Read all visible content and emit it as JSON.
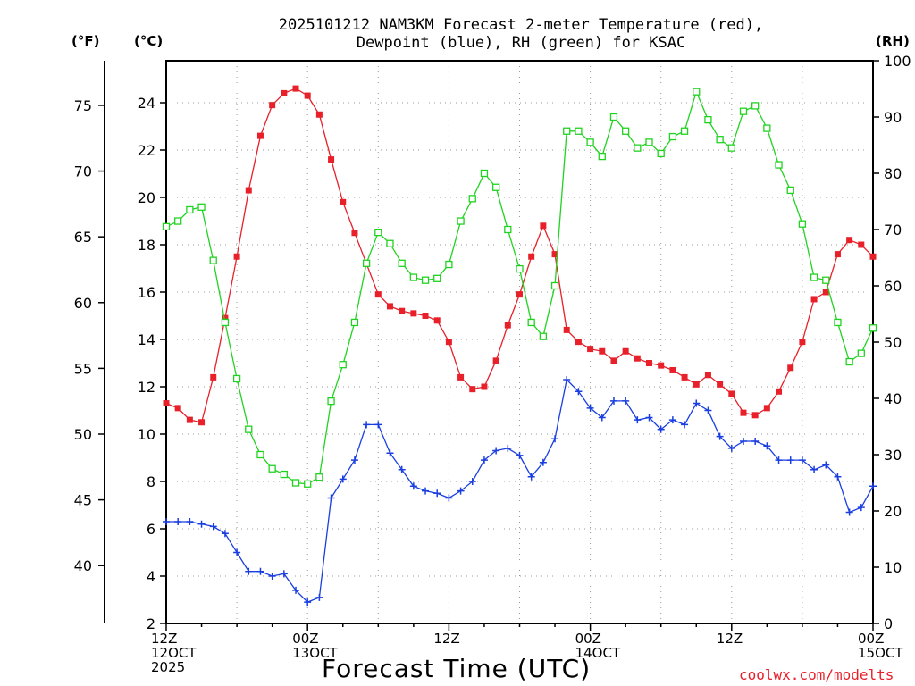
{
  "header": {
    "title_line1": "2025101212 NAM3KM Forecast 2-meter Temperature (red),",
    "title_line2": "Dewpoint (blue), RH (green) for KSAC",
    "unit_f": "(°F)",
    "unit_c": "(°C)",
    "unit_rh": "(RH)"
  },
  "footer": {
    "xlabel": "Forecast Time (UTC)",
    "credit": "coolwx.com/modelts"
  },
  "chart_data": {
    "type": "line",
    "title": "2025101212 NAM3KM Forecast 2-meter Temperature (red), Dewpoint (blue), RH (green) for KSAC",
    "xlabel": "Forecast Time (UTC)",
    "x_hours": [
      0,
      1,
      2,
      3,
      4,
      5,
      6,
      7,
      8,
      9,
      10,
      11,
      12,
      13,
      14,
      15,
      16,
      17,
      18,
      19,
      20,
      21,
      22,
      23,
      24,
      25,
      26,
      27,
      28,
      29,
      30,
      31,
      32,
      33,
      34,
      35,
      36,
      37,
      38,
      39,
      40,
      41,
      42,
      43,
      44,
      45,
      46,
      47,
      48,
      49,
      50,
      51,
      52,
      53,
      54,
      55,
      56,
      57,
      58,
      59,
      60
    ],
    "x_ticks": [
      {
        "hour": 0,
        "lines": [
          "12Z",
          "12OCT",
          "2025"
        ]
      },
      {
        "hour": 12,
        "lines": [
          "00Z",
          "13OCT"
        ]
      },
      {
        "hour": 24,
        "lines": [
          "12Z"
        ]
      },
      {
        "hour": 36,
        "lines": [
          "00Z",
          "14OCT"
        ]
      },
      {
        "hour": 48,
        "lines": [
          "12Z"
        ]
      },
      {
        "hour": 60,
        "lines": [
          "00Z",
          "15OCT"
        ]
      }
    ],
    "y_left_c": {
      "label": "(°C)",
      "ylim": [
        2,
        26
      ],
      "ticks": [
        2,
        4,
        6,
        8,
        10,
        12,
        14,
        16,
        18,
        20,
        22,
        24
      ]
    },
    "y_left_f": {
      "label": "(°F)",
      "ticks": [
        40,
        45,
        50,
        55,
        60,
        65,
        70,
        75
      ]
    },
    "y_right_rh": {
      "label": "(RH)",
      "ylim": [
        0,
        100
      ],
      "ticks": [
        0,
        10,
        20,
        30,
        40,
        50,
        60,
        70,
        80,
        90,
        100
      ]
    },
    "grid": true,
    "series": [
      {
        "name": "Temperature",
        "color": "#e8202a",
        "axis": "c",
        "marker": "filled-square",
        "values": [
          11.3,
          11.1,
          10.6,
          10.5,
          12.4,
          14.9,
          17.5,
          20.3,
          22.6,
          23.9,
          24.4,
          24.6,
          24.3,
          23.5,
          21.6,
          19.8,
          18.5,
          17.2,
          15.9,
          15.4,
          15.2,
          15.1,
          15.0,
          14.8,
          13.9,
          12.4,
          11.9,
          12.0,
          13.1,
          14.6,
          15.9,
          17.5,
          18.8,
          17.6,
          14.4,
          13.9,
          13.6,
          13.5,
          13.1,
          13.5,
          13.2,
          13.0,
          12.9,
          12.7,
          12.4,
          12.1,
          12.5,
          12.1,
          11.7,
          10.9,
          10.8,
          11.1,
          11.8,
          12.8,
          13.9,
          15.7,
          16.0,
          17.6,
          18.2,
          18.0,
          17.5
        ]
      },
      {
        "name": "Dewpoint",
        "color": "#1a3fe0",
        "axis": "c",
        "marker": "plus",
        "values": [
          6.3,
          6.3,
          6.3,
          6.2,
          6.1,
          5.8,
          5.0,
          4.2,
          4.2,
          4.0,
          4.1,
          3.4,
          2.9,
          3.1,
          7.3,
          8.1,
          8.9,
          10.4,
          10.4,
          9.2,
          8.5,
          7.8,
          7.6,
          7.5,
          7.3,
          7.6,
          8.0,
          8.9,
          9.3,
          9.4,
          9.1,
          8.2,
          8.8,
          9.8,
          12.3,
          11.8,
          11.1,
          10.7,
          11.4,
          11.4,
          10.6,
          10.7,
          10.2,
          10.6,
          10.4,
          11.3,
          11.0,
          9.9,
          9.4,
          9.7,
          9.7,
          9.5,
          8.9,
          8.9,
          8.9,
          8.5,
          8.7,
          8.2,
          6.7,
          6.9,
          7.8
        ]
      },
      {
        "name": "RH",
        "color": "#21d321",
        "axis": "rh",
        "marker": "open-square",
        "values": [
          70.5,
          71.5,
          73.5,
          74.0,
          64.5,
          53.5,
          43.5,
          34.5,
          30.0,
          27.5,
          26.5,
          25.0,
          24.8,
          26.0,
          39.5,
          46.0,
          53.5,
          64.0,
          69.5,
          67.5,
          64.0,
          61.5,
          61.0,
          61.3,
          63.8,
          71.5,
          75.5,
          80.0,
          77.5,
          70.0,
          63.0,
          53.5,
          51.0,
          60.0,
          87.5,
          87.5,
          85.5,
          83.0,
          90.0,
          87.5,
          84.5,
          85.5,
          83.5,
          86.5,
          87.5,
          94.5,
          89.5,
          86.0,
          84.5,
          91.0,
          92.0,
          88.0,
          81.5,
          77.0,
          71.0,
          61.5,
          61.0,
          53.5,
          46.5,
          48.0,
          52.5
        ]
      }
    ]
  }
}
